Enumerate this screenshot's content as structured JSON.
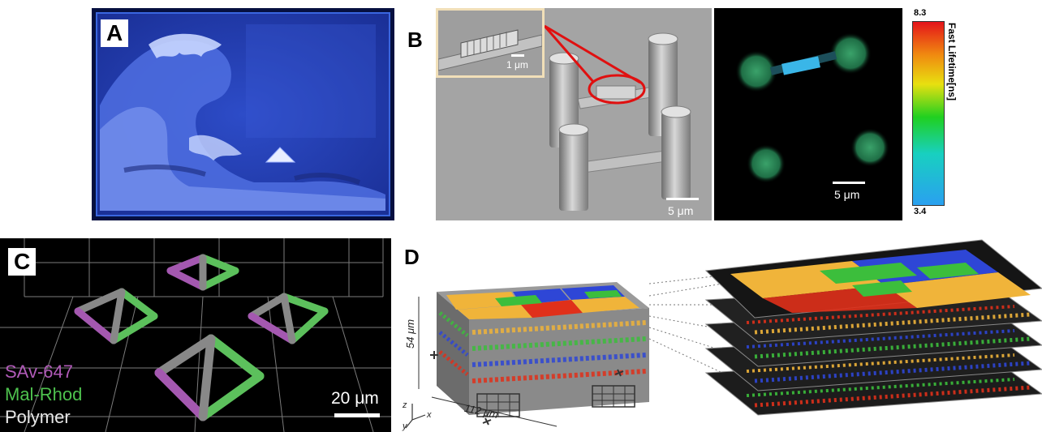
{
  "panel_a": {
    "label": "A"
  },
  "panel_b": {
    "label": "B",
    "inset_scale": "1 μm",
    "sem_scale": "5 μm",
    "fluor_scale": "5 μm",
    "colorbar": {
      "max": "8.3",
      "min": "3.4",
      "title": "Fast Lifetime[ns]"
    }
  },
  "panel_c": {
    "label": "C",
    "legend": [
      {
        "text": "SAv-647",
        "color": "#b05ab8"
      },
      {
        "text": "Mal-Rhod",
        "color": "#4ec24e"
      },
      {
        "text": "Polymer",
        "color": "#e8e8e8"
      }
    ],
    "scale": "20 μm"
  },
  "panel_d": {
    "label": "D",
    "dim_height": "54 μm",
    "dim_width": "112 μm",
    "axis_z": "z",
    "axis_x": "x",
    "axis_y": "y"
  }
}
